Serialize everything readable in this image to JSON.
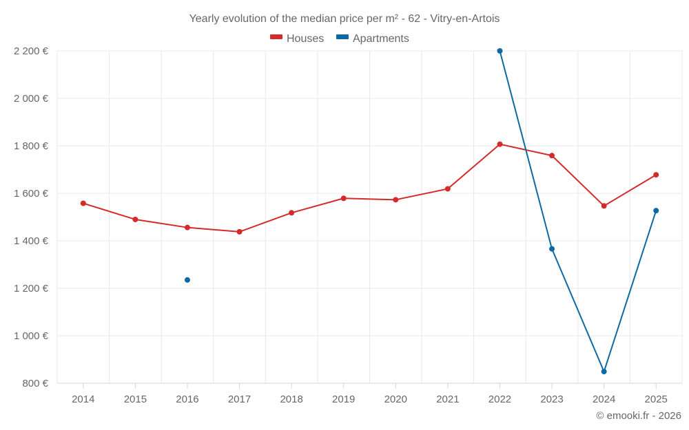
{
  "chart_data": {
    "type": "line",
    "title": "Yearly evolution of the median price per m² - 62 - Vitry-en-Artois",
    "xlabel": "",
    "ylabel": "",
    "x": [
      2014,
      2015,
      2016,
      2017,
      2018,
      2019,
      2020,
      2021,
      2022,
      2023,
      2024,
      2025
    ],
    "x_tick_labels": [
      "2014",
      "2015",
      "2016",
      "2017",
      "2018",
      "2019",
      "2020",
      "2021",
      "2022",
      "2023",
      "2024",
      "2025"
    ],
    "ylim": [
      800,
      2200
    ],
    "y_ticks": [
      800,
      1000,
      1200,
      1400,
      1600,
      1800,
      2000,
      2200
    ],
    "y_tick_labels": [
      "800 €",
      "1 000 €",
      "1 200 €",
      "1 400 €",
      "1 600 €",
      "1 800 €",
      "2 000 €",
      "2 200 €"
    ],
    "grid": true,
    "legend_position": "top-center",
    "series": [
      {
        "name": "Houses",
        "color": "#d42a2a",
        "values": [
          1558,
          1490,
          1456,
          1438,
          1518,
          1579,
          1573,
          1619,
          1807,
          1759,
          1547,
          1678
        ]
      },
      {
        "name": "Apartments",
        "color": "#0a6aa1",
        "values": [
          null,
          null,
          1235,
          null,
          null,
          null,
          null,
          null,
          2200,
          1366,
          849,
          1527
        ]
      }
    ],
    "credit": "© emooki.fr - 2026"
  }
}
